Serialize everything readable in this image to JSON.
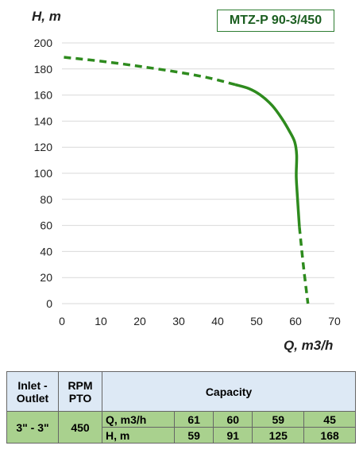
{
  "chart_data": {
    "type": "line",
    "title": "MTZ-P 90-3/450",
    "xlabel": "Q, m3/h",
    "ylabel": "H, m",
    "xlim": [
      0,
      70
    ],
    "ylim": [
      0,
      200
    ],
    "xticks": [
      0,
      10,
      20,
      30,
      40,
      50,
      60,
      70
    ],
    "yticks": [
      0,
      20,
      40,
      60,
      80,
      100,
      120,
      140,
      160,
      180,
      200
    ],
    "grid": "horizontal",
    "series": [
      {
        "color": "#2e8b1e",
        "segments": [
          {
            "style": "dashed",
            "x": [
              0.5,
              10,
              20,
              30,
              38,
              44.5
            ],
            "y": [
              189,
              186,
              182,
              177.5,
              173,
              168
            ]
          },
          {
            "style": "solid",
            "x": [
              44.5,
              48,
              51,
              54,
              56.5,
              58.5,
              59.8,
              60.3,
              60.2,
              60.3,
              61
            ],
            "y": [
              168,
              165,
              160,
              152,
              142,
              132,
              124,
              114,
              100,
              91,
              59
            ]
          },
          {
            "style": "dashed",
            "x": [
              61,
              62,
              63.2
            ],
            "y": [
              59,
              30,
              0
            ]
          }
        ]
      }
    ]
  },
  "spec_table": {
    "inlet_header": "Inlet - Outlet",
    "rpm_header": "RPM PTO",
    "capacity_header": "Capacity",
    "inlet_value": "3\" - 3\"",
    "rpm_value": "450",
    "q_label": "Q, m3/h",
    "h_label": "H, m",
    "q_values": [
      "61",
      "60",
      "59",
      "45"
    ],
    "h_values": [
      "59",
      "91",
      "125",
      "168"
    ]
  }
}
